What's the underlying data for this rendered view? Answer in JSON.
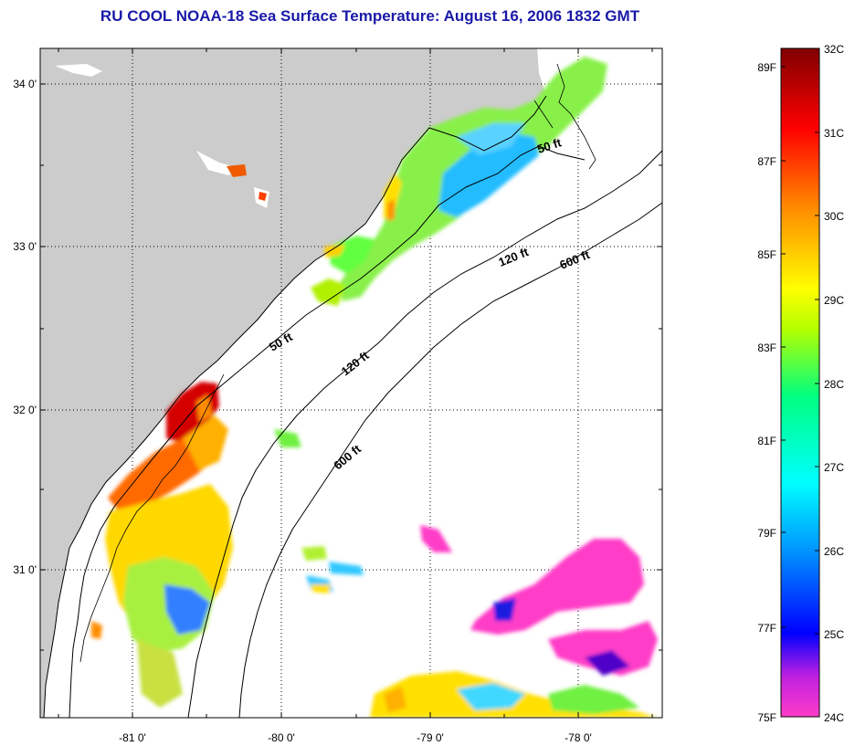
{
  "title": "RU COOL  NOAA-18  Sea Surface Temperature:  August 16, 2006 1832 GMT",
  "map": {
    "lat_ticks": [
      "34 0'",
      "33 0'",
      "32 0'",
      "31 0'"
    ],
    "lon_ticks": [
      "-81 0'",
      "-80 0'",
      "-79 0'",
      "-78 0'"
    ],
    "lat_range": [
      30.1,
      34.2
    ],
    "lon_range": [
      -81.6,
      -77.4
    ],
    "depth_labels": [
      "50 ft",
      "120 ft",
      "600 ft",
      "50 ft",
      "120 ft",
      "600 ft"
    ],
    "land_color": "#cccccc",
    "water_no_data_color": "#ffffff",
    "gridlines": true
  },
  "colorbar": {
    "celsius_labels": [
      "32C",
      "31C",
      "30C",
      "29C",
      "28C",
      "27C",
      "26C",
      "25C",
      "24C"
    ],
    "fahrenheit_labels": [
      "89F",
      "87F",
      "85F",
      "83F",
      "81F",
      "79F",
      "77F",
      "75F"
    ],
    "celsius_range": [
      24,
      32
    ],
    "fahrenheit_range": [
      75,
      89.6
    ],
    "stops": [
      "#ff3cc8",
      "#a000e0",
      "#0000ff",
      "#0096ff",
      "#00ffff",
      "#00ff80",
      "#b4ff00",
      "#ffff00",
      "#ff8c00",
      "#ff0000",
      "#800000"
    ]
  }
}
